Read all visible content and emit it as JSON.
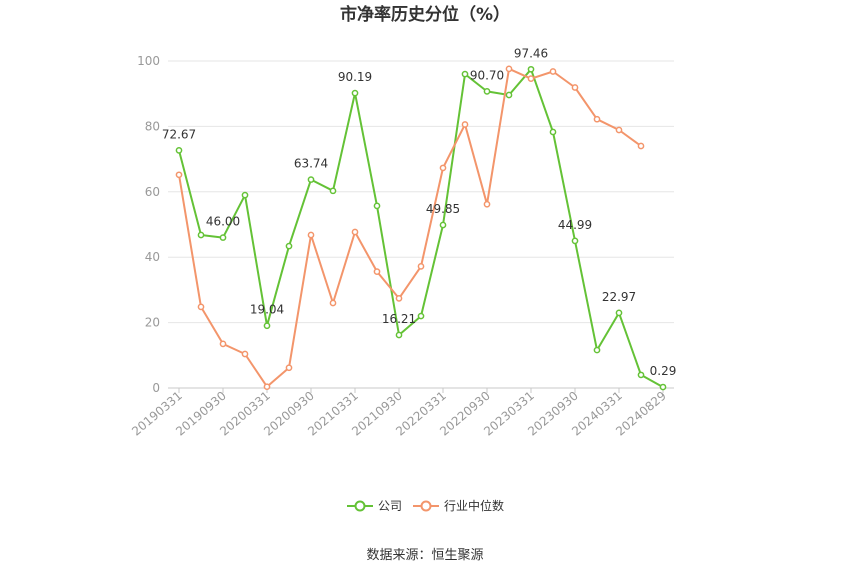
{
  "chart_data": {
    "type": "line",
    "title": "市净率历史分位（%）",
    "x_labels": [
      "20190331",
      "20190930",
      "20200331",
      "20200930",
      "20210331",
      "20210930",
      "20220331",
      "20220930",
      "20230331",
      "20230930",
      "20240331",
      "20240829"
    ],
    "ylim": [
      0,
      100
    ],
    "y_ticks": [
      0,
      20,
      40,
      60,
      80,
      100
    ],
    "grid": true,
    "legend_position": "bottom",
    "series": [
      {
        "name": "公司",
        "color": "#64c236",
        "values": [
          72.67,
          46.8,
          46.0,
          59.0,
          19.04,
          43.4,
          63.74,
          60.3,
          90.19,
          55.7,
          16.21,
          22.0,
          49.85,
          96.0,
          90.7,
          89.6,
          97.46,
          78.3,
          44.99,
          11.6,
          22.97,
          4.0,
          0.29
        ],
        "data_labels": [
          "72.67",
          null,
          "46.00",
          null,
          "19.04",
          null,
          "63.74",
          null,
          "90.19",
          null,
          "16.21",
          null,
          "49.85",
          null,
          "90.70",
          null,
          "97.46",
          null,
          "44.99",
          null,
          "22.97",
          null,
          "0.29"
        ]
      },
      {
        "name": "行业中位数",
        "color": "#f3956b",
        "values": [
          65.2,
          24.8,
          13.5,
          10.4,
          0.4,
          6.2,
          46.8,
          26.0,
          47.7,
          35.6,
          27.4,
          37.2,
          67.3,
          80.6,
          56.2,
          97.6,
          94.6,
          96.8,
          91.9,
          82.2,
          78.9,
          74.0,
          null
        ]
      }
    ]
  },
  "source": "数据来源：恒生聚源"
}
